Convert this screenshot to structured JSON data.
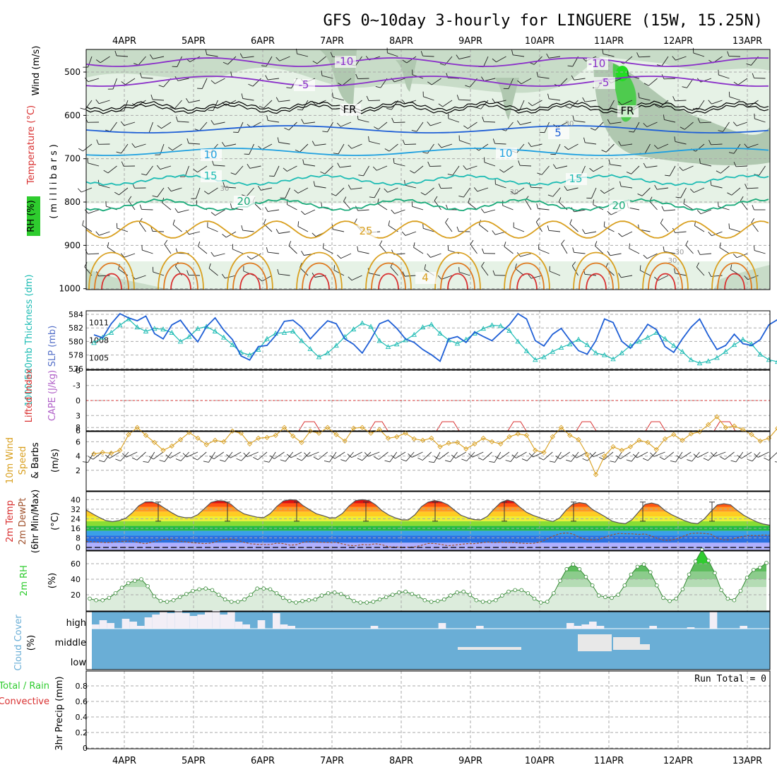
{
  "title": "GFS 0~10day 3-hourly for LINGUERE (15W, 15.25N)",
  "days": [
    "4APR",
    "5APR",
    "6APR",
    "7APR",
    "8APR",
    "9APR",
    "10APR",
    "11APR",
    "12APR",
    "13APR"
  ],
  "colors": {
    "purple": "#8a2fc9",
    "black": "#000000",
    "blue": "#1f5fd6",
    "cyan": "#1fa0e0",
    "teal": "#1ebcb4",
    "green": "#1aaa7a",
    "orange": "#d9a020",
    "orange2": "#e07a20",
    "red": "#d93030",
    "rh_green": "#2ecc2e",
    "cloud_blue": "#6aaed6"
  },
  "panels": {
    "upper": {
      "ylabel_left1": "Wind (m/s)",
      "ylabel_left2": "Temperature (°C)",
      "ylabel_left3": "RH (%)",
      "ylabel_right": "(millibars)",
      "ticks": [
        "500",
        "600",
        "700",
        "800",
        "900",
        "1000"
      ],
      "contour_labels": [
        {
          "text": "-10",
          "color": "purple"
        },
        {
          "text": "-5",
          "color": "purple"
        },
        {
          "text": "-10",
          "color": "purple"
        },
        {
          "text": "-5",
          "color": "purple"
        },
        {
          "text": "FR",
          "color": "black"
        },
        {
          "text": "FR",
          "color": "black"
        },
        {
          "text": "5",
          "color": "blue"
        },
        {
          "text": "10",
          "color": "cyan"
        },
        {
          "text": "10",
          "color": "cyan"
        },
        {
          "text": "15",
          "color": "teal"
        },
        {
          "text": "15",
          "color": "teal"
        },
        {
          "text": "20",
          "color": "green"
        },
        {
          "text": "20",
          "color": "green"
        },
        {
          "text": "25",
          "color": "orange"
        },
        {
          "text": "4",
          "color": "orange"
        },
        {
          "text": "30",
          "color": "gray"
        },
        {
          "text": "30",
          "color": "gray"
        },
        {
          "text": "30",
          "color": "gray"
        },
        {
          "text": "30",
          "color": "gray"
        },
        {
          "text": "30",
          "color": "gray"
        }
      ]
    },
    "thickness": {
      "ylabel_left": "1000-500mb Thickness (dm)",
      "ylabel_right": "SLP (mb)",
      "ticks_left": [
        "584",
        "582",
        "580",
        "578",
        "576"
      ],
      "ticks_right": [
        "1011",
        "1008",
        "1005"
      ]
    },
    "cape": {
      "ylabel_left": "Lifted Index",
      "ylabel_right": "CAPE (J/kg)",
      "ticks": [
        "-6",
        "-3",
        "0",
        "3",
        "6"
      ]
    },
    "wind10m": {
      "ylabel1": "10m Wind",
      "ylabel2": "Speed",
      "ylabel3": "& Barbs",
      "ylabel_unit": "(m/s)",
      "ticks": [
        "8",
        "6",
        "4",
        "2"
      ]
    },
    "temp2m": {
      "ylabel1": "2m Temp",
      "ylabel2": "2m DewPt",
      "ylabel3": "(6hr Min/Max)",
      "ylabel_unit": "(°C)",
      "ticks": [
        "40",
        "32",
        "24",
        "16",
        "8",
        "0"
      ]
    },
    "rh2m": {
      "ylabel": "2m RH",
      "ylabel_unit": "(%)",
      "ticks": [
        "60",
        "40",
        "20"
      ]
    },
    "cloud": {
      "ylabel": "Cloud Cover",
      "ylabel_unit": "(%)",
      "levels": [
        "high",
        "middle",
        "low"
      ]
    },
    "precip": {
      "ylabel1": "Total / Rain",
      "ylabel2": "Convective",
      "ylabel3": "3hr Precip (mm)",
      "ticks": [
        "0.8",
        "0.6",
        "0.4",
        "0.2",
        "0"
      ],
      "run_total": "Run Total = 0"
    }
  },
  "chart_data": [
    {
      "type": "line",
      "title": "1000-500mb Thickness (dm) / SLP (mb)",
      "series": [
        {
          "name": "1000-500mb Thickness (dm)",
          "values": [
            579.8,
            580.6,
            581.3,
            582.4,
            583.3,
            582.1,
            581.5,
            581.9,
            581.8,
            581.3,
            580.0,
            580.7,
            581.9,
            582.2,
            581.5,
            580.6,
            579.5,
            578.4,
            578.0,
            578.8,
            580.4,
            581.2,
            581.3,
            581.5,
            580.1,
            578.9,
            577.7,
            578.3,
            579.4,
            580.7,
            581.8,
            582.7,
            582.2,
            580.1,
            579.2,
            579.6,
            580.2,
            581.0,
            582.1,
            582.5,
            581.2,
            580.2,
            579.7,
            580.3,
            581.2,
            581.9,
            582.4,
            582.3,
            581.6,
            580.0,
            578.6,
            577.3,
            577.7,
            578.5,
            579.1,
            579.6,
            580.3,
            579.5,
            578.3,
            578.0,
            577.4,
            578.3,
            579.4,
            580.0,
            580.6,
            581.3,
            580.4,
            579.4,
            578.5,
            577.3,
            576.8,
            577.1,
            577.6,
            578.5,
            579.5,
            580.3,
            579.6,
            578.1,
            577.3,
            577.0,
            576.9,
            578.3,
            579.3,
            580.6,
            580.4,
            579.0,
            578.0,
            577.2,
            576.3
          ]
        },
        {
          "name": "SLP (mb)",
          "values": [
            1008.9,
            1008.4,
            1010.8,
            1012.5,
            1011.8,
            1011.3,
            1012.1,
            1009.1,
            1008.2,
            1010.6,
            1011.4,
            1009.4,
            1007.7,
            1010.3,
            1011.8,
            1009.7,
            1008.1,
            1005.3,
            1004.6,
            1006.9,
            1007.1,
            1008.8,
            1011.2,
            1011.4,
            1010.2,
            1008.2,
            1009.8,
            1011.3,
            1010.8,
            1008.2,
            1007.3,
            1005.8,
            1008.1,
            1010.8,
            1011.4,
            1010.0,
            1008.2,
            1007.6,
            1006.4,
            1005.5,
            1004.4,
            1008.2,
            1008.6,
            1007.6,
            1009.4,
            1008.6,
            1007.9,
            1009.3,
            1010.6,
            1012.5,
            1011.6,
            1007.9,
            1007.0,
            1009.0,
            1010.0,
            1008.0,
            1006.2,
            1005.6,
            1007.9,
            1011.6,
            1011.0,
            1007.8,
            1006.6,
            1008.5,
            1010.7,
            1009.8,
            1006.9,
            1005.9,
            1008.2,
            1010.2,
            1011.6,
            1008.8,
            1006.4,
            1007.1,
            1009.0,
            1007.4,
            1007.1,
            1008.1,
            1010.6,
            1011.5,
            1008.8,
            1007.0,
            1008.4,
            1010.8,
            1009.7,
            1007.1,
            1009.6,
            1011.5,
            1011.0
          ]
        }
      ],
      "ylim_left": [
        576,
        584
      ],
      "ylim_right": [
        1003,
        1013
      ]
    },
    {
      "type": "line",
      "title": "10m Wind Speed (m/s)",
      "series": [
        {
          "name": "10m Wind Speed",
          "values": [
            4.3,
            4.5,
            4.4,
            4.8,
            7.0,
            8.0,
            6.9,
            5.9,
            4.8,
            5.4,
            6.3,
            7.3,
            6.5,
            5.6,
            6.2,
            6.0,
            7.5,
            7.2,
            5.7,
            6.5,
            6.6,
            6.9,
            8.0,
            6.8,
            5.9,
            7.5,
            7.2,
            8.0,
            7.0,
            6.1,
            7.9,
            8.0,
            7.2,
            7.7,
            6.5,
            6.7,
            7.2,
            6.4,
            6.2,
            6.5,
            5.3,
            5.8,
            5.9,
            5.0,
            5.7,
            6.5,
            6.0,
            5.7,
            6.7,
            7.1,
            6.9,
            4.8,
            4.5,
            6.7,
            8.0,
            6.9,
            6.3,
            4.2,
            1.4,
            4.0,
            5.3,
            4.8,
            5.3,
            6.2,
            5.9,
            4.9,
            6.4,
            7.0,
            6.2,
            7.1,
            7.4,
            8.4,
            9.5,
            8.0,
            8.2,
            7.7,
            7.0,
            6.1,
            6.5,
            7.9,
            6.7,
            7.9,
            6.2,
            6.7,
            5.6,
            4.8,
            6.6,
            6.3,
            7.1
          ]
        }
      ],
      "ylim": [
        0,
        10
      ]
    },
    {
      "type": "area",
      "title": "2m Temp / 2m DewPt (°C)",
      "series": [
        {
          "name": "2m Temp",
          "values": [
            31.4,
            28.1,
            25.1,
            22.5,
            21.6,
            22.5,
            24.4,
            29.0,
            34.9,
            38.1,
            38.3,
            36.2,
            32.6,
            29.1,
            26.1,
            25.0,
            25.0,
            27.5,
            32.6,
            37.7,
            39.2,
            38.8,
            36.3,
            31.5,
            28.1,
            26.7,
            25.3,
            24.9,
            28.4,
            34.4,
            38.9,
            40.0,
            39.6,
            35.0,
            31.5,
            28.2,
            26.7,
            24.8,
            25.0,
            28.6,
            34.9,
            39.3,
            40.0,
            39.3,
            35.8,
            30.8,
            27.2,
            24.8,
            23.1,
            23.1,
            27.4,
            34.2,
            37.9,
            39.3,
            38.2,
            35.8,
            31.3,
            27.0,
            24.9,
            23.3,
            23.1,
            26.0,
            32.0,
            37.4,
            39.7,
            38.4,
            33.6,
            29.4,
            26.8,
            24.9,
            23.0,
            21.7,
            24.6,
            31.3,
            36.3,
            37.6,
            36.6,
            31.8,
            28.7,
            25.5,
            22.0,
            20.6,
            19.9,
            23.1,
            29.5,
            36.1,
            37.2,
            35.8,
            31.0,
            27.6,
            25.0,
            22.4,
            20.6,
            19.9,
            23.8,
            30.0,
            35.6,
            36.6,
            35.7,
            31.1,
            27.0,
            24.0,
            21.4,
            19.6,
            18.6
          ]
        },
        {
          "name": "2m DewPt",
          "values": [
            5.0,
            4.8,
            4.4,
            4.1,
            4.3,
            5.0,
            5.2,
            5.3,
            4.0,
            3.1,
            4.5,
            5.8,
            6.9,
            6.7,
            5.4,
            4.8,
            4.1,
            3.6,
            3.2,
            3.6,
            5.2,
            6.8,
            7.0,
            6.0,
            4.3,
            3.1,
            2.6,
            2.5,
            2.5,
            3.6,
            3.2,
            1.9,
            2.3,
            4.4,
            4.9,
            4.6,
            4.3,
            4.2,
            4.3,
            2.9,
            1.7,
            1.4,
            2.4,
            2.2,
            3.1,
            2.3,
            0.5,
            0.3,
            0.3,
            0.2,
            0.5,
            1.8,
            3.3,
            3.3,
            2.5,
            1.4,
            1.9,
            2.6,
            3.2,
            3.2,
            3.8,
            4.6,
            4.0,
            4.5,
            4.3,
            4.2,
            3.6,
            3.3,
            3.4,
            4.5,
            6.7,
            9.4,
            11.4,
            12.2,
            11.3,
            8.5,
            6.7,
            6.3,
            6.7,
            8.8,
            10.6,
            11.7,
            11.5,
            11.4,
            10.9,
            11.3,
            9.6,
            7.2,
            6.0,
            6.2,
            7.4,
            9.8,
            11.7,
            12.0,
            11.7,
            11.2,
            7.7,
            6.4,
            6.4,
            8.0,
            9.4,
            10.1,
            9.9,
            10.4,
            10.2
          ]
        }
      ],
      "ylim": [
        -2,
        42
      ]
    },
    {
      "type": "area",
      "title": "2m RH (%)",
      "series": [
        {
          "name": "2m RH",
          "values": [
            15,
            13,
            13,
            16,
            22,
            29,
            35,
            38,
            40,
            31,
            18,
            12,
            11,
            13,
            17,
            21,
            25,
            27,
            28,
            26,
            20,
            14,
            11,
            11,
            14,
            20,
            28,
            28,
            27,
            22,
            16,
            12,
            10,
            12,
            13,
            14,
            19,
            22,
            23,
            21,
            17,
            12,
            10,
            10,
            11,
            14,
            17,
            20,
            23,
            24,
            21,
            18,
            13,
            11,
            12,
            14,
            19,
            23,
            24,
            20,
            13,
            11,
            11,
            13,
            19,
            24,
            26,
            26,
            22,
            15,
            10,
            11,
            22,
            38,
            53,
            59,
            53,
            43,
            32,
            19,
            17,
            16,
            20,
            32,
            46,
            56,
            59,
            49,
            32,
            16,
            12,
            15,
            27,
            46,
            63,
            78,
            64,
            48,
            26,
            15,
            13,
            25,
            42,
            52,
            55,
            61
          ]
        }
      ],
      "ylim": [
        0,
        70
      ]
    },
    {
      "type": "bar",
      "title": "3hr Precip (mm)",
      "series": [
        {
          "name": "Total / Rain",
          "values": []
        }
      ],
      "ylim": [
        0,
        0.95
      ]
    }
  ]
}
